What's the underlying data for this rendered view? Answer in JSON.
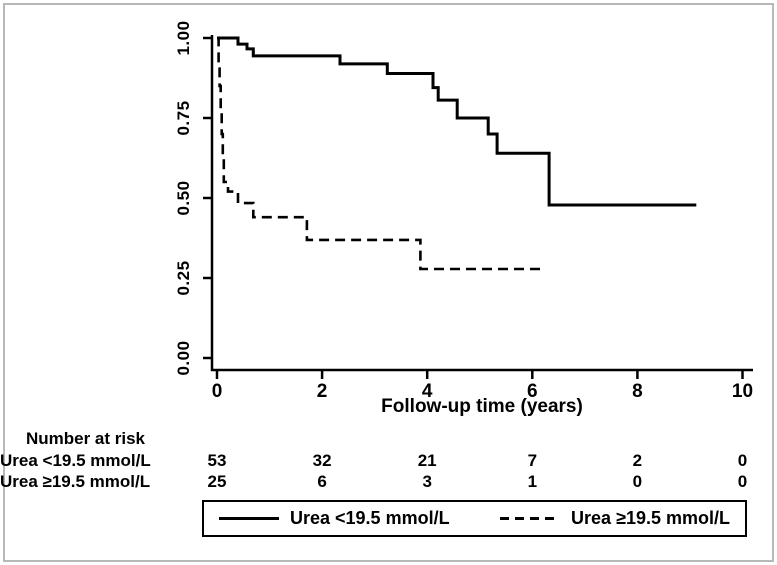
{
  "figure": {
    "background": "#ffffff",
    "frame_color": "#b8b8b8",
    "line_color": "#000000"
  },
  "chart_data": {
    "type": "line",
    "subtype": "kaplan-meier-step",
    "title": "",
    "xlabel": "Follow-up time (years)",
    "ylabel": "",
    "xlim": [
      0,
      10
    ],
    "ylim": [
      0.0,
      1.0
    ],
    "grid": false,
    "legend_position": "bottom-box",
    "x_ticks": [
      {
        "value": 0,
        "label": "0"
      },
      {
        "value": 2,
        "label": "2"
      },
      {
        "value": 4,
        "label": "4"
      },
      {
        "value": 6,
        "label": "6"
      },
      {
        "value": 8,
        "label": "8"
      },
      {
        "value": 10,
        "label": "10"
      }
    ],
    "y_ticks": [
      {
        "value": 0.0,
        "label": "0.00"
      },
      {
        "value": 0.25,
        "label": "0.25"
      },
      {
        "value": 0.5,
        "label": "0.50"
      },
      {
        "value": 0.75,
        "label": "0.75"
      },
      {
        "value": 1.0,
        "label": "1.00"
      }
    ],
    "series": [
      {
        "name": "Urea <19.5 mmol/L",
        "style": "solid",
        "steps": [
          [
            0,
            1.0
          ],
          [
            0.4,
            0.981
          ],
          [
            0.57,
            0.966
          ],
          [
            0.69,
            0.944
          ],
          [
            2.34,
            0.919
          ],
          [
            3.24,
            0.889
          ],
          [
            4.11,
            0.845
          ],
          [
            4.21,
            0.806
          ],
          [
            4.57,
            0.75
          ],
          [
            5.16,
            0.7
          ],
          [
            5.33,
            0.64
          ],
          [
            6.32,
            0.478
          ]
        ],
        "end_t": 9.12
      },
      {
        "name": "Urea ≥19.5 mmol/L",
        "style": "dashed",
        "steps": [
          [
            0,
            1.0
          ],
          [
            0.03,
            0.92
          ],
          [
            0.05,
            0.85
          ],
          [
            0.07,
            0.78
          ],
          [
            0.09,
            0.7
          ],
          [
            0.11,
            0.63
          ],
          [
            0.13,
            0.55
          ],
          [
            0.21,
            0.52
          ],
          [
            0.4,
            0.484
          ],
          [
            0.69,
            0.44
          ],
          [
            1.71,
            0.369
          ],
          [
            3.87,
            0.278
          ]
        ],
        "end_t": 6.21
      }
    ]
  },
  "risk_table": {
    "title": "Number at risk",
    "time_points": [
      0,
      2,
      4,
      6,
      8,
      10
    ],
    "rows": [
      {
        "label": "Urea <19.5 mmol/L",
        "counts": [
          "53",
          "32",
          "21",
          "7",
          "2",
          "0"
        ]
      },
      {
        "label": "Urea ≥19.5 mmol/L",
        "counts": [
          "25",
          "6",
          "3",
          "1",
          "0",
          "0"
        ]
      }
    ]
  },
  "legend": {
    "entries": [
      {
        "label": "Urea <19.5 mmol/L",
        "style": "solid"
      },
      {
        "label": "Urea ≥19.5 mmol/L",
        "style": "dashed"
      }
    ]
  }
}
